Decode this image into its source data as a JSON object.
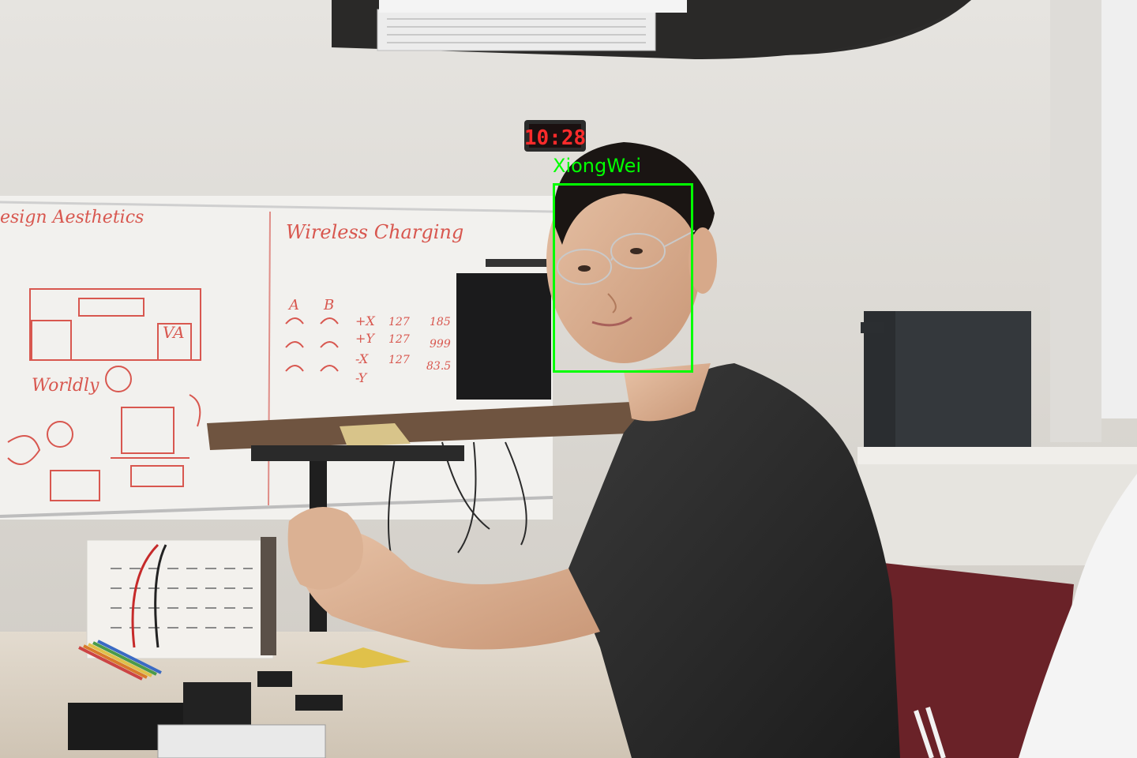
{
  "detection": {
    "label": "XiongWei",
    "box_color": "#00ff00"
  },
  "clock": {
    "time": "10:28",
    "digit_color": "#ff2b2b"
  },
  "whiteboard": {
    "heading_left": "esign Aesthetics",
    "heading_right": "Wireless Charging",
    "word_worldly": "Worldly",
    "label_va": "VA",
    "col_labels": [
      "A",
      "B"
    ],
    "axis_labels": [
      "+X",
      "+Y",
      "-X",
      "-Y"
    ],
    "numbers": [
      "127",
      "127",
      "127",
      "185",
      "999",
      "83.5"
    ],
    "marker_color": "#d8574f"
  }
}
